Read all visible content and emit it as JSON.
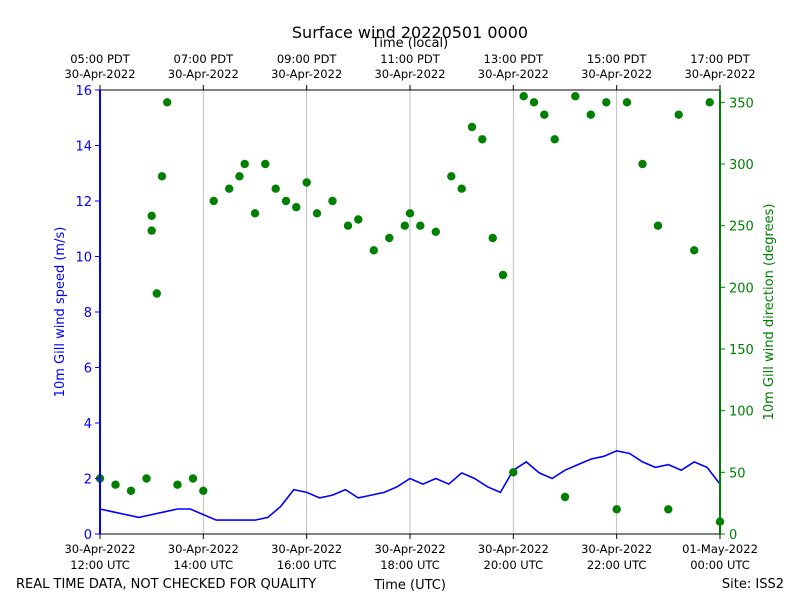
{
  "chart_data": {
    "type": "line+scatter",
    "title": "Surface wind 20220501 0000",
    "top_axis_label": "Time (local)",
    "xlabel": "Time (UTC)",
    "ylabel_left": "10m Gill wind speed (m/s)",
    "ylabel_right": "10m Gill wind direction (degrees)",
    "ylim_left": [
      0,
      16
    ],
    "ylim_right": [
      0,
      360
    ],
    "xlim_hours_utc": [
      12,
      24
    ],
    "grid": "vertical",
    "left_ticks": [
      "0",
      "2",
      "4",
      "6",
      "8",
      "10",
      "12",
      "14",
      "16"
    ],
    "right_ticks": [
      "0",
      "50",
      "100",
      "150",
      "200",
      "250",
      "300",
      "350"
    ],
    "bottom_ticks": [
      {
        "hour": 12,
        "line1": "30-Apr-2022",
        "line2": "12:00 UTC"
      },
      {
        "hour": 14,
        "line1": "30-Apr-2022",
        "line2": "14:00 UTC"
      },
      {
        "hour": 16,
        "line1": "30-Apr-2022",
        "line2": "16:00 UTC"
      },
      {
        "hour": 18,
        "line1": "30-Apr-2022",
        "line2": "18:00 UTC"
      },
      {
        "hour": 20,
        "line1": "30-Apr-2022",
        "line2": "20:00 UTC"
      },
      {
        "hour": 22,
        "line1": "30-Apr-2022",
        "line2": "22:00 UTC"
      },
      {
        "hour": 24,
        "line1": "01-May-2022",
        "line2": "00:00 UTC"
      }
    ],
    "top_ticks": [
      {
        "hour": 12,
        "line1": "05:00 PDT",
        "line2": "30-Apr-2022"
      },
      {
        "hour": 14,
        "line1": "07:00 PDT",
        "line2": "30-Apr-2022"
      },
      {
        "hour": 16,
        "line1": "09:00 PDT",
        "line2": "30-Apr-2022"
      },
      {
        "hour": 18,
        "line1": "11:00 PDT",
        "line2": "30-Apr-2022"
      },
      {
        "hour": 20,
        "line1": "13:00 PDT",
        "line2": "30-Apr-2022"
      },
      {
        "hour": 22,
        "line1": "15:00 PDT",
        "line2": "30-Apr-2022"
      },
      {
        "hour": 24,
        "line1": "17:00 PDT",
        "line2": "30-Apr-2022"
      }
    ],
    "series": [
      {
        "name": "10m Gill wind speed (m/s)",
        "axis": "left",
        "style": "line",
        "color": "#0000ff",
        "x_hours": [
          12.0,
          12.25,
          12.5,
          12.75,
          13.0,
          13.25,
          13.5,
          13.75,
          14.0,
          14.25,
          14.5,
          14.75,
          15.0,
          15.25,
          15.5,
          15.75,
          16.0,
          16.25,
          16.5,
          16.75,
          17.0,
          17.25,
          17.5,
          17.75,
          18.0,
          18.25,
          18.5,
          18.75,
          19.0,
          19.25,
          19.5,
          19.75,
          20.0,
          20.25,
          20.5,
          20.75,
          21.0,
          21.25,
          21.5,
          21.75,
          22.0,
          22.25,
          22.5,
          22.75,
          23.0,
          23.25,
          23.5,
          23.75,
          24.0
        ],
        "values": [
          0.9,
          0.8,
          0.7,
          0.6,
          0.7,
          0.8,
          0.9,
          0.9,
          0.7,
          0.5,
          0.5,
          0.5,
          0.5,
          0.6,
          1.0,
          1.6,
          1.5,
          1.3,
          1.4,
          1.6,
          1.3,
          1.4,
          1.5,
          1.7,
          2.0,
          1.8,
          2.0,
          1.8,
          2.2,
          2.0,
          1.7,
          1.5,
          2.3,
          2.6,
          2.2,
          2.0,
          2.3,
          2.5,
          2.7,
          2.8,
          3.0,
          2.9,
          2.6,
          2.4,
          2.5,
          2.3,
          2.6,
          2.4,
          1.8
        ]
      },
      {
        "name": "10m Gill wind direction (degrees)",
        "axis": "right",
        "style": "scatter",
        "color": "#008000",
        "x_hours": [
          12.0,
          12.3,
          12.6,
          12.9,
          13.0,
          13.0,
          13.1,
          13.2,
          13.3,
          13.5,
          13.8,
          14.0,
          14.2,
          14.5,
          14.7,
          14.8,
          15.0,
          15.2,
          15.4,
          15.6,
          15.8,
          16.0,
          16.2,
          16.5,
          16.8,
          17.0,
          17.3,
          17.6,
          17.9,
          18.0,
          18.2,
          18.5,
          18.8,
          19.0,
          19.2,
          19.4,
          19.6,
          19.8,
          20.0,
          20.2,
          20.4,
          20.6,
          20.8,
          21.0,
          21.2,
          21.5,
          21.8,
          22.0,
          22.2,
          22.5,
          22.8,
          23.0,
          23.2,
          23.5,
          23.8,
          24.0
        ],
        "values": [
          45,
          40,
          35,
          45,
          258,
          246,
          195,
          290,
          350,
          40,
          45,
          35,
          270,
          280,
          290,
          300,
          260,
          300,
          280,
          270,
          265,
          285,
          260,
          270,
          250,
          255,
          230,
          240,
          250,
          260,
          250,
          245,
          290,
          280,
          330,
          320,
          240,
          210,
          50,
          355,
          350,
          340,
          320,
          30,
          355,
          340,
          350,
          20,
          350,
          300,
          250,
          20,
          340,
          230,
          350,
          10
        ]
      }
    ]
  },
  "footer": {
    "disclaimer": "REAL TIME DATA, NOT CHECKED FOR QUALITY",
    "site": "Site: ISS2"
  }
}
